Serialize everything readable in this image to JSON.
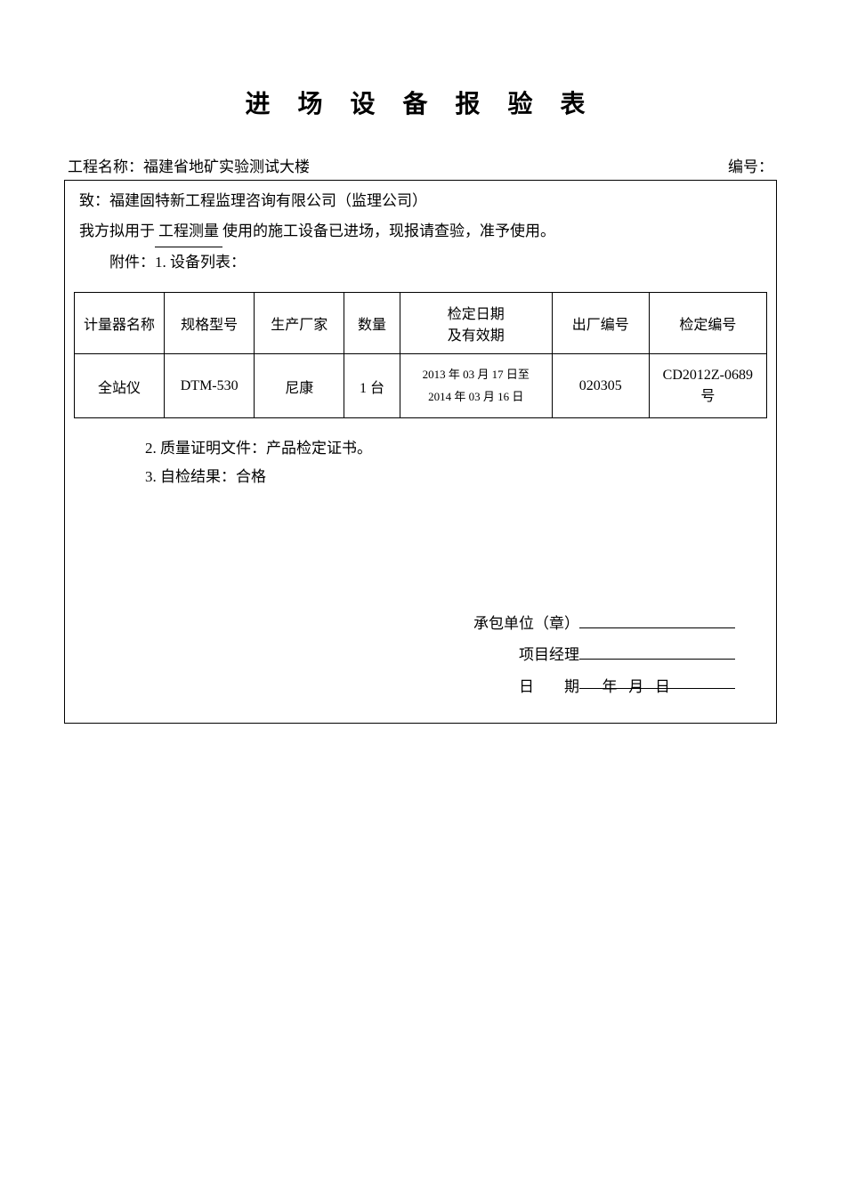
{
  "title": "进 场 设 备 报 验 表",
  "header": {
    "project_label": "工程名称：",
    "project_name": "福建省地矿实验测试大楼",
    "number_label": "编号："
  },
  "body": {
    "to_label": "致：",
    "to_value": "福建固特新工程监理咨询有限公司（监理公司）",
    "line2_pre": "我方拟用于",
    "line2_underline": "工程测量",
    "line2_post": "使用的施工设备已进场，现报请查验，准予使用。",
    "attach1": "附件：1. 设备列表："
  },
  "table": {
    "headers": {
      "c1": "计量器名称",
      "c2": "规格型号",
      "c3": "生产厂家",
      "c4": "数量",
      "c5": "检定日期\n及有效期",
      "c6": "出厂编号",
      "c7": "检定编号"
    },
    "row": {
      "c1": "全站仪",
      "c2": "DTM-530",
      "c3": "尼康",
      "c4": "1 台",
      "c5a": "2013 年 03 月 17 日至",
      "c5b": "2014 年 03 月 16 日",
      "c6": "020305",
      "c7": "CD2012Z-0689 号"
    }
  },
  "attach": {
    "a2": "2. 质量证明文件：产品检定证书。",
    "a3": "3. 自检结果：合格"
  },
  "sign": {
    "contractor_label": "承包单位（章）",
    "manager_label": "项目经理",
    "date_label": "日        期",
    "date_value": "      年   月   日    "
  }
}
